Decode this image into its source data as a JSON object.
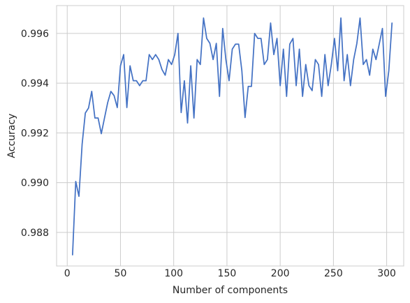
{
  "chart_data": {
    "type": "line",
    "title": "",
    "xlabel": "Number of components",
    "ylabel": "Accuracy",
    "xlim": [
      -10,
      316
    ],
    "ylim": [
      0.98665,
      0.99712
    ],
    "xticks": [
      0,
      50,
      100,
      150,
      200,
      250,
      300
    ],
    "xtick_labels": [
      "0",
      "50",
      "100",
      "150",
      "200",
      "250",
      "300"
    ],
    "yticks": [
      0.988,
      0.99,
      0.992,
      0.994,
      0.996
    ],
    "ytick_labels": [
      "0.988",
      "0.990",
      "0.992",
      "0.994",
      "0.996"
    ],
    "grid": true,
    "legend": "none",
    "line_color": "#4472c4",
    "x": [
      5,
      8,
      11,
      14,
      17,
      20,
      23,
      26,
      29,
      32,
      35,
      38,
      41,
      44,
      47,
      50,
      53,
      56,
      59,
      62,
      65,
      68,
      71,
      74,
      77,
      80,
      83,
      86,
      89,
      92,
      95,
      98,
      101,
      104,
      107,
      110,
      113,
      116,
      119,
      122,
      125,
      128,
      131,
      134,
      137,
      140,
      143,
      146,
      149,
      152,
      155,
      158,
      161,
      164,
      167,
      170,
      173,
      176,
      179,
      182,
      185,
      188,
      191,
      194,
      197,
      200,
      203,
      206,
      209,
      212,
      215,
      218,
      221,
      224,
      227,
      230,
      233,
      236,
      239,
      242,
      245,
      248,
      251,
      254,
      257,
      260,
      263,
      266,
      269,
      272,
      275,
      278,
      281,
      284,
      287,
      290,
      293,
      296,
      299,
      302,
      305
    ],
    "values": [
      0.9871,
      0.99005,
      0.98945,
      0.99155,
      0.9928,
      0.993,
      0.99367,
      0.9926,
      0.9926,
      0.99197,
      0.9926,
      0.99322,
      0.99367,
      0.9935,
      0.99302,
      0.9947,
      0.99515,
      0.99302,
      0.9947,
      0.9941,
      0.9941,
      0.9939,
      0.9941,
      0.9941,
      0.99515,
      0.99495,
      0.99515,
      0.99495,
      0.99455,
      0.99432,
      0.99495,
      0.99475,
      0.99515,
      0.996,
      0.99282,
      0.9941,
      0.9924,
      0.9947,
      0.9926,
      0.99495,
      0.99475,
      0.99662,
      0.9958,
      0.9956,
      0.99495,
      0.9956,
      0.99347,
      0.9962,
      0.99495,
      0.9941,
      0.99537,
      0.99557,
      0.99557,
      0.9945,
      0.99262,
      0.99387,
      0.99387,
      0.996,
      0.9958,
      0.9958,
      0.99475,
      0.99495,
      0.99642,
      0.99515,
      0.9958,
      0.9939,
      0.99537,
      0.99347,
      0.99557,
      0.9958,
      0.9939,
      0.99537,
      0.99347,
      0.99475,
      0.9939,
      0.9937,
      0.99495,
      0.99475,
      0.99347,
      0.99515,
      0.9939,
      0.99475,
      0.9958,
      0.9945,
      0.99662,
      0.9941,
      0.99515,
      0.9939,
      0.99495,
      0.9956,
      0.99662,
      0.99475,
      0.99495,
      0.99432,
      0.99537,
      0.99495,
      0.99557,
      0.9962,
      0.99347,
      0.9945,
      0.99642
    ]
  }
}
